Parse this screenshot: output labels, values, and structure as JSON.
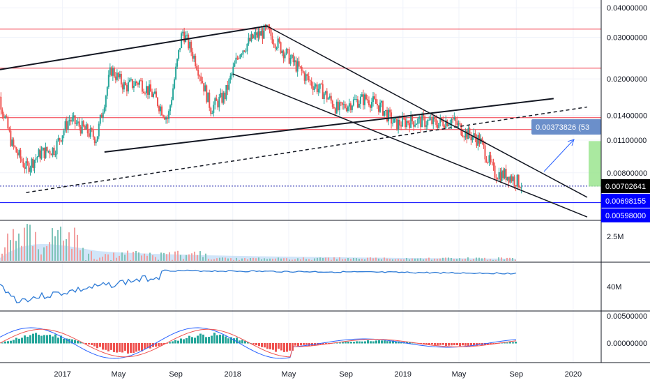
{
  "chart_data": {
    "type": "candlestick",
    "title": "",
    "x_axis": {
      "tick_labels": [
        "2017",
        "May",
        "Sep",
        "2018",
        "May",
        "Sep",
        "2019",
        "May",
        "Sep",
        "2020"
      ],
      "tick_dates": [
        "2017-01-01",
        "2017-05-01",
        "2017-09-01",
        "2018-01-01",
        "2018-05-01",
        "2018-09-01",
        "2019-01-01",
        "2019-05-01",
        "2019-09-01",
        "2020-01-01"
      ],
      "range": [
        "2016-08-20",
        "2020-03-01"
      ]
    },
    "y_axis": {
      "scale": "log",
      "range": [
        0.0051,
        0.042
      ],
      "tick_labels": [
        "0.04000000",
        "0.03000000",
        "0.02000000",
        "0.01400000",
        "0.01100000",
        "0.00800000"
      ],
      "tick_values": [
        0.04,
        0.03,
        0.02,
        0.014,
        0.011,
        0.008
      ]
    },
    "price_tags": [
      {
        "label": "0.00702641",
        "value": 0.00702641,
        "color": "#000000"
      },
      {
        "label": "0.00698155",
        "value": 0.00698155,
        "color": "#0000ff"
      },
      {
        "label": "0.00598000",
        "value": 0.00598,
        "color": "#0000ff"
      }
    ],
    "measure_label": "0.00373826 (53",
    "horizontal_levels": [
      {
        "value": 0.0325,
        "color": "#f23645"
      },
      {
        "value": 0.0222,
        "color": "#f23645"
      },
      {
        "value": 0.0137,
        "color": "#f23645"
      },
      {
        "value": 0.0122,
        "color": "#f23645"
      },
      {
        "value": 0.00702641,
        "color": "#1e22aa",
        "dashed": true
      },
      {
        "value": 0.00598,
        "color": "#0000ff"
      }
    ],
    "trendlines": [
      {
        "from": [
          "2016-08-20",
          0.0219
        ],
        "to": [
          "2018-03-15",
          0.0335
        ],
        "style": "solid",
        "width": 2
      },
      {
        "from": [
          "2017-04-01",
          0.0098
        ],
        "to": [
          "2019-11-20",
          0.0165
        ],
        "style": "solid",
        "width": 2
      },
      {
        "from": [
          "2016-10-15",
          0.0066
        ],
        "to": [
          "2020-01-31",
          0.0152
        ],
        "style": "dashed",
        "width": 1.5
      },
      {
        "from": [
          "2018-03-15",
          0.0335
        ],
        "to": [
          "2020-01-31",
          0.0063
        ],
        "style": "solid",
        "width": 1.5
      },
      {
        "from": [
          "2018-01-01",
          0.021
        ],
        "to": [
          "2020-01-31",
          0.0052
        ],
        "style": "solid",
        "width": 1.5
      }
    ],
    "series": {
      "x": [
        "2016-08",
        "2016-09",
        "2016-10",
        "2016-11",
        "2016-12",
        "2017-01",
        "2017-02",
        "2017-03",
        "2017-04",
        "2017-05",
        "2017-06",
        "2017-07",
        "2017-08",
        "2017-09",
        "2017-10",
        "2017-11",
        "2017-12",
        "2018-01",
        "2018-02",
        "2018-03",
        "2018-04",
        "2018-05",
        "2018-06",
        "2018-07",
        "2018-08",
        "2018-09",
        "2018-10",
        "2018-11",
        "2018-12",
        "2019-01",
        "2019-02",
        "2019-03",
        "2019-04",
        "2019-05",
        "2019-06",
        "2019-07",
        "2019-08",
        "2019-09"
      ],
      "close": [
        0.0178,
        0.0105,
        0.0084,
        0.0097,
        0.0101,
        0.0135,
        0.0123,
        0.0112,
        0.022,
        0.0185,
        0.0195,
        0.017,
        0.0135,
        0.032,
        0.0235,
        0.015,
        0.017,
        0.026,
        0.03,
        0.032,
        0.027,
        0.023,
        0.0195,
        0.0175,
        0.0148,
        0.016,
        0.0165,
        0.0152,
        0.0128,
        0.0133,
        0.0132,
        0.013,
        0.0135,
        0.0118,
        0.011,
        0.008,
        0.0078,
        0.0071
      ],
      "high": [
        0.0195,
        0.018,
        0.011,
        0.0105,
        0.0112,
        0.015,
        0.014,
        0.013,
        0.0235,
        0.0215,
        0.0205,
        0.02,
        0.018,
        0.038,
        0.033,
        0.024,
        0.02,
        0.028,
        0.0315,
        0.0345,
        0.032,
        0.0275,
        0.0235,
        0.02,
        0.0178,
        0.0178,
        0.018,
        0.0166,
        0.0152,
        0.014,
        0.0137,
        0.0136,
        0.014,
        0.0135,
        0.0118,
        0.0112,
        0.0085,
        0.008
      ],
      "low": [
        0.017,
        0.0098,
        0.0066,
        0.0082,
        0.0092,
        0.01,
        0.011,
        0.01,
        0.011,
        0.017,
        0.0165,
        0.015,
        0.0125,
        0.011,
        0.019,
        0.0138,
        0.014,
        0.0165,
        0.025,
        0.028,
        0.025,
        0.0215,
        0.0182,
        0.016,
        0.0142,
        0.014,
        0.015,
        0.0135,
        0.0122,
        0.0122,
        0.0125,
        0.0125,
        0.0128,
        0.011,
        0.01,
        0.0075,
        0.0073,
        0.0068
      ]
    },
    "panels": [
      {
        "name": "volume",
        "tick_labels": [
          "2.5M"
        ]
      },
      {
        "name": "indicator",
        "tick_labels": [
          "40M"
        ]
      },
      {
        "name": "macd",
        "tick_labels": [
          "0.00500000",
          "0.00000000"
        ]
      }
    ]
  }
}
